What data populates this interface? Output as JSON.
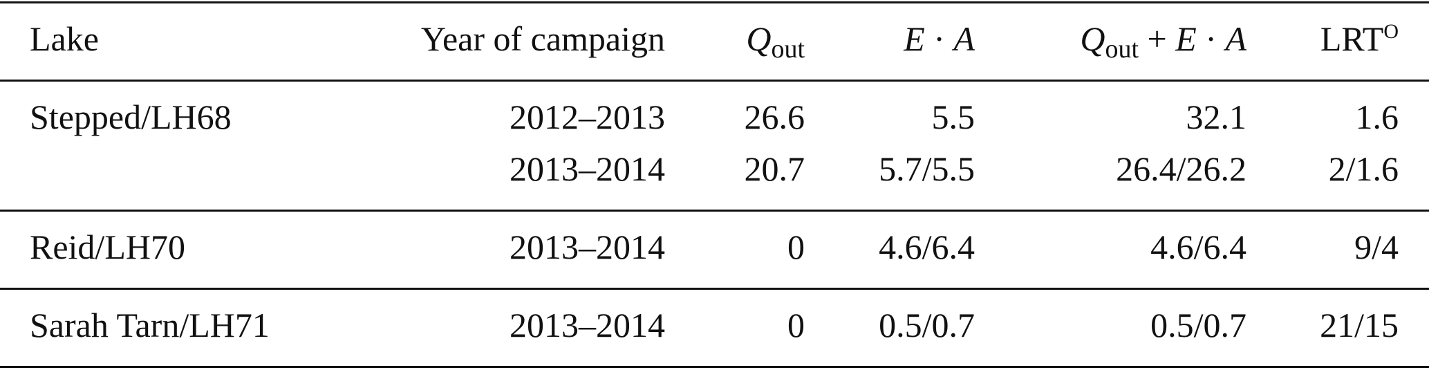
{
  "table": {
    "header": [
      [
        "Lake"
      ],
      [
        "Year of campaign"
      ],
      [
        "Q",
        "out"
      ],
      [
        "E",
        " · ",
        "A"
      ],
      [
        "Q",
        "out",
        " + ",
        "E",
        " · ",
        "A"
      ],
      [
        "LRT",
        "O"
      ]
    ],
    "groups": [
      {
        "lake": "Stepped/LH68",
        "rows": [
          [
            "2012–2013",
            "26.6",
            "5.5",
            "32.1",
            "1.6"
          ],
          [
            "2013–2014",
            "20.7",
            "5.7/5.5",
            "26.4/26.2",
            "2/1.6"
          ]
        ]
      },
      {
        "lake": "Reid/LH70",
        "rows": [
          [
            "2013–2014",
            "0",
            "4.6/6.4",
            "4.6/6.4",
            "9/4"
          ]
        ]
      },
      {
        "lake": "Sarah Tarn/LH71",
        "rows": [
          [
            "2013–2014",
            "0",
            "0.5/0.7",
            "0.5/0.7",
            "21/15"
          ]
        ]
      }
    ]
  }
}
